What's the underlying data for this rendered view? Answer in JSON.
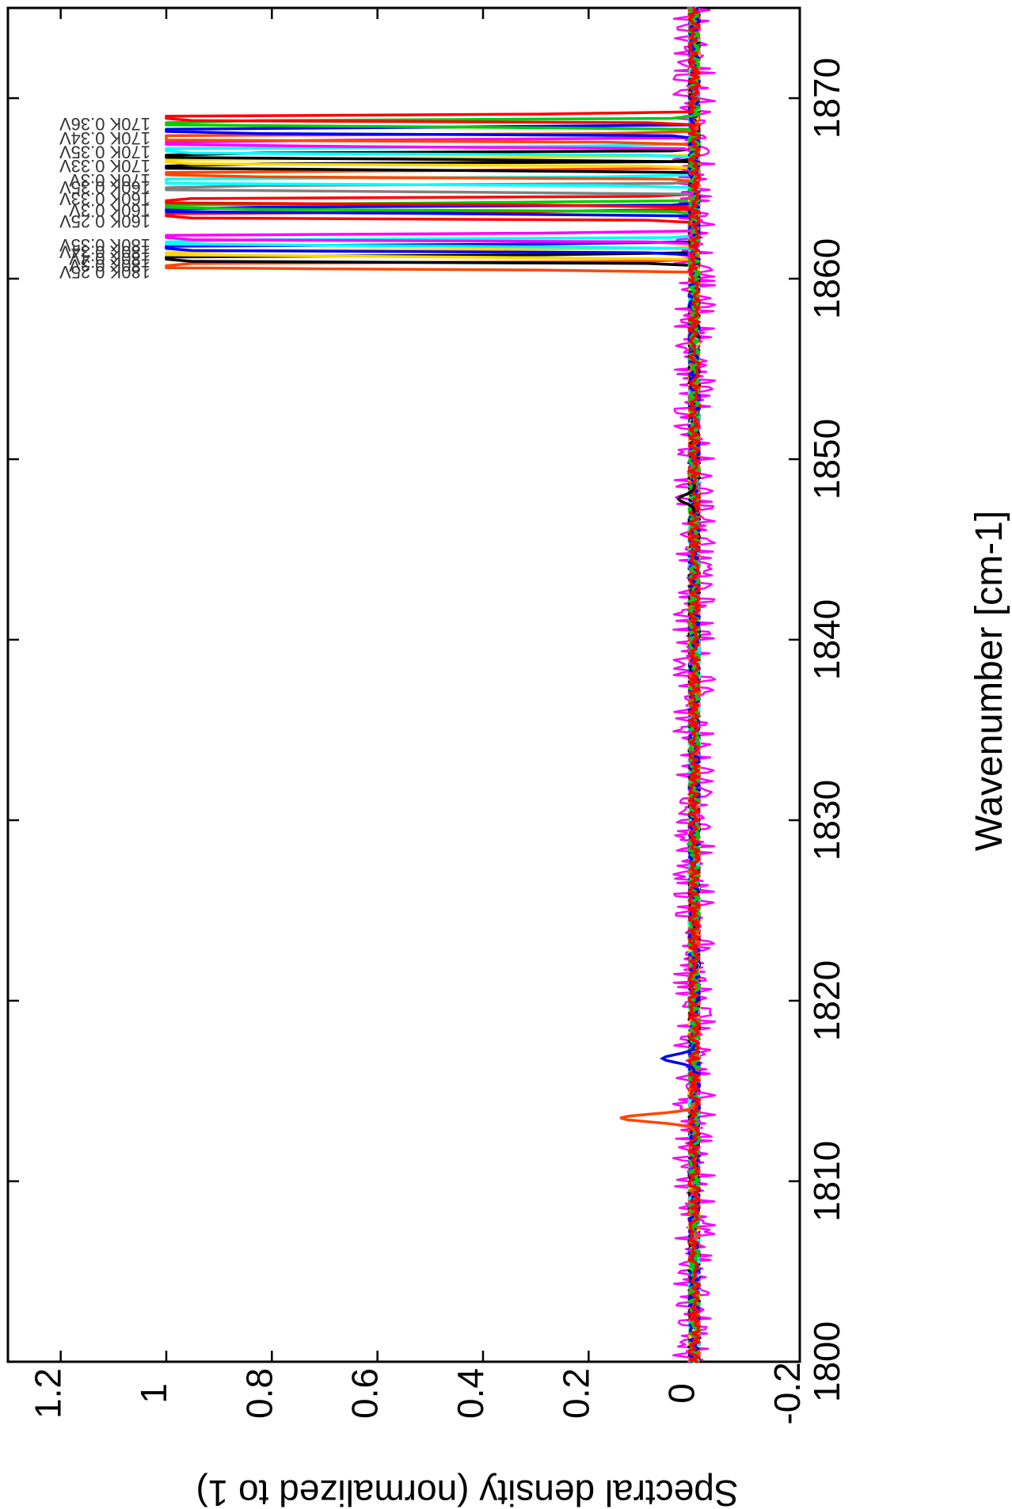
{
  "chart_data": {
    "type": "line",
    "orientation": "rotated 90 degrees clockwise (wavenumber axis runs top-to-bottom on the right, density axis runs left-to-right along the bottom)",
    "title": "",
    "xlabel": "Wavenumber [cm-1]",
    "ylabel": "Spectral density (normalized to 1)",
    "xlim": [
      1800,
      1875
    ],
    "ylim": [
      -0.2,
      1.3
    ],
    "x_ticks": [
      "1800",
      "1810",
      "1820",
      "1830",
      "1840",
      "1850",
      "1860",
      "1870"
    ],
    "y_ticks": [
      "-0.2",
      "0",
      "0.2",
      "0.4",
      "0.6",
      "0.8",
      "1",
      "1.2"
    ],
    "grid": false,
    "legend": "none",
    "baseline_noise_amplitude": 0.02,
    "series": [
      {
        "color": "#ff4500",
        "peak_x": 1860.7
      },
      {
        "color": "#000000",
        "peak_x": 1861.1
      },
      {
        "color": "#ffd700",
        "peak_x": 1861.4
      },
      {
        "color": "#0000ff",
        "peak_x": 1861.7
      },
      {
        "color": "#00ffff",
        "peak_x": 1862.0
      },
      {
        "color": "#ff00ff",
        "peak_x": 1862.3
      },
      {
        "color": "#ff0000",
        "peak_x": 1863.5
      },
      {
        "color": "#0000ff",
        "peak_x": 1863.8
      },
      {
        "color": "#00cc00",
        "peak_x": 1864.0
      },
      {
        "color": "#ff0000",
        "peak_x": 1864.3
      },
      {
        "color": "#808080",
        "peak_x": 1865.0
      },
      {
        "color": "#00ffff",
        "peak_x": 1865.4
      },
      {
        "color": "#ff4500",
        "peak_x": 1865.8
      },
      {
        "color": "#000000",
        "peak_x": 1866.2
      },
      {
        "color": "#ffd700",
        "peak_x": 1866.5
      },
      {
        "color": "#000000",
        "peak_x": 1866.8
      },
      {
        "color": "#00ffff",
        "peak_x": 1867.1
      },
      {
        "color": "#ff00ff",
        "peak_x": 1867.5
      },
      {
        "color": "#ff4500",
        "peak_x": 1867.8
      },
      {
        "color": "#0000ff",
        "peak_x": 1868.2
      },
      {
        "color": "#00cc00",
        "peak_x": 1868.6
      },
      {
        "color": "#ff0000",
        "peak_x": 1868.9
      }
    ],
    "minor_peaks": [
      {
        "color": "#ff4500",
        "x": 1813.5,
        "y": 0.14
      },
      {
        "color": "#0000ff",
        "x": 1816.8,
        "y": 0.06
      },
      {
        "color": "#000000",
        "x": 1847.8,
        "y": 0.03
      }
    ],
    "peak_labels": [
      "180K 0.25V",
      "180K 0.3V",
      "180K 0.4V",
      "180K 0.34V",
      "180K 0.35V",
      "160K 0.25V",
      "160K 0.3V",
      "160K 0.33V",
      "160K 0.35V",
      "170K 0.3V",
      "170K 0.33V",
      "170K 0.35V",
      "170K 0.34V",
      "170K 0.36V"
    ]
  }
}
